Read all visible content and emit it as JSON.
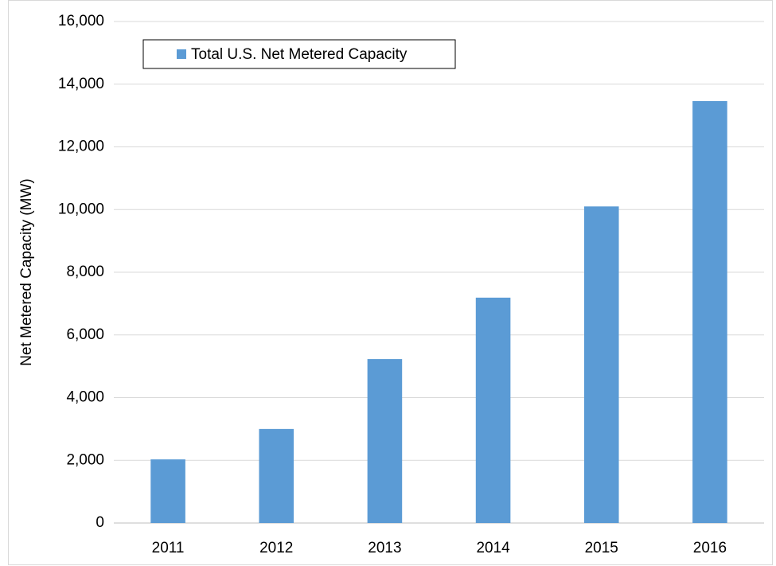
{
  "chart_data": {
    "type": "bar",
    "y_label": "Net Metered Capacity (MW)",
    "categories": [
      "2011",
      "2012",
      "2013",
      "2014",
      "2015",
      "2016"
    ],
    "series": [
      {
        "name": "Total U.S. Net Metered Capacity",
        "color": "#5b9bd5",
        "values": [
          2030,
          3000,
          5230,
          7190,
          10100,
          13460
        ]
      }
    ],
    "ylim": [
      0,
      16000
    ],
    "yticks": [
      0,
      {
        "value": 2000,
        "label": "2,000"
      },
      {
        "value": 4000,
        "label": "4,000"
      },
      {
        "value": 6000,
        "label": "6,000"
      },
      {
        "value": 8000,
        "label": "8,000"
      },
      {
        "value": 10000,
        "label": "10,000"
      },
      {
        "value": 12000,
        "label": "12,000"
      },
      {
        "value": 14000,
        "label": "14,000"
      },
      {
        "value": 16000,
        "label": "16,000"
      }
    ],
    "grid": true,
    "legend": "top-left"
  }
}
